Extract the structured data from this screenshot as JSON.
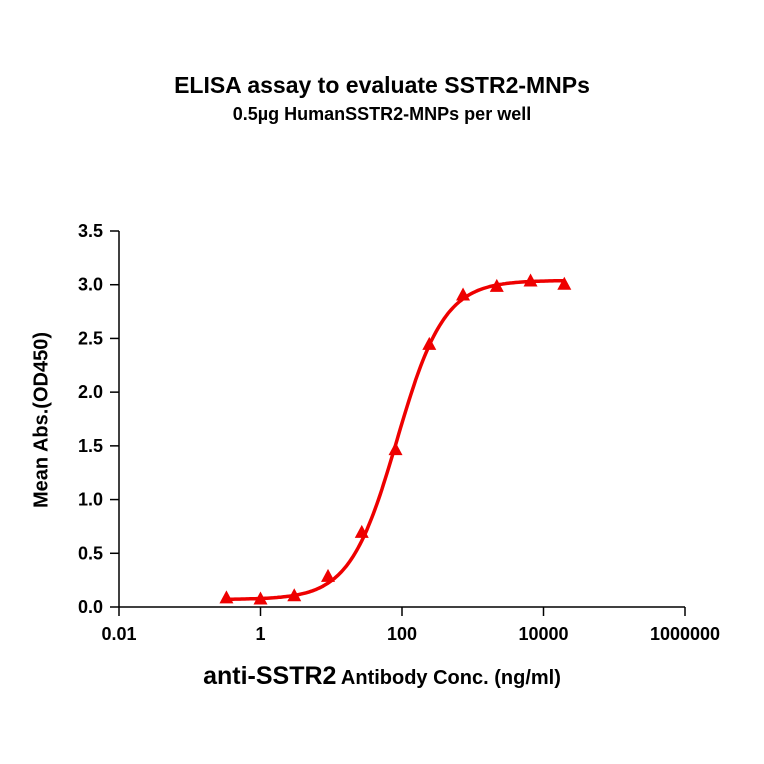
{
  "chart_data": {
    "type": "scatter",
    "title": "ELISA assay to evaluate SSTR2-MNPs",
    "subtitle": "0.5µg HumanSSTR2-MNPs per well",
    "xlabel_main": "anti-SSTR2",
    "xlabel_rest": "Antibody Conc. (ng/ml)",
    "ylabel": "Mean Abs.(OD450)",
    "x_scale": "log",
    "xlim": [
      0.01,
      1000000
    ],
    "ylim": [
      0,
      3.5
    ],
    "x_ticks": [
      "0.01",
      "1",
      "100",
      "10000",
      "1000000"
    ],
    "y_ticks": [
      "0.0",
      "0.5",
      "1.0",
      "1.5",
      "2.0",
      "2.5",
      "3.0",
      "3.5"
    ],
    "grid": false,
    "legend": "none",
    "color": "#ee0000",
    "marker": "triangle",
    "fit_curve": "sigmoidal",
    "x": [
      0.33,
      1,
      3,
      9,
      27,
      81,
      243,
      729,
      2187,
      6561,
      19683
    ],
    "y": [
      0.08,
      0.07,
      0.1,
      0.28,
      0.69,
      1.46,
      2.44,
      2.9,
      2.98,
      3.03,
      3.0
    ]
  }
}
